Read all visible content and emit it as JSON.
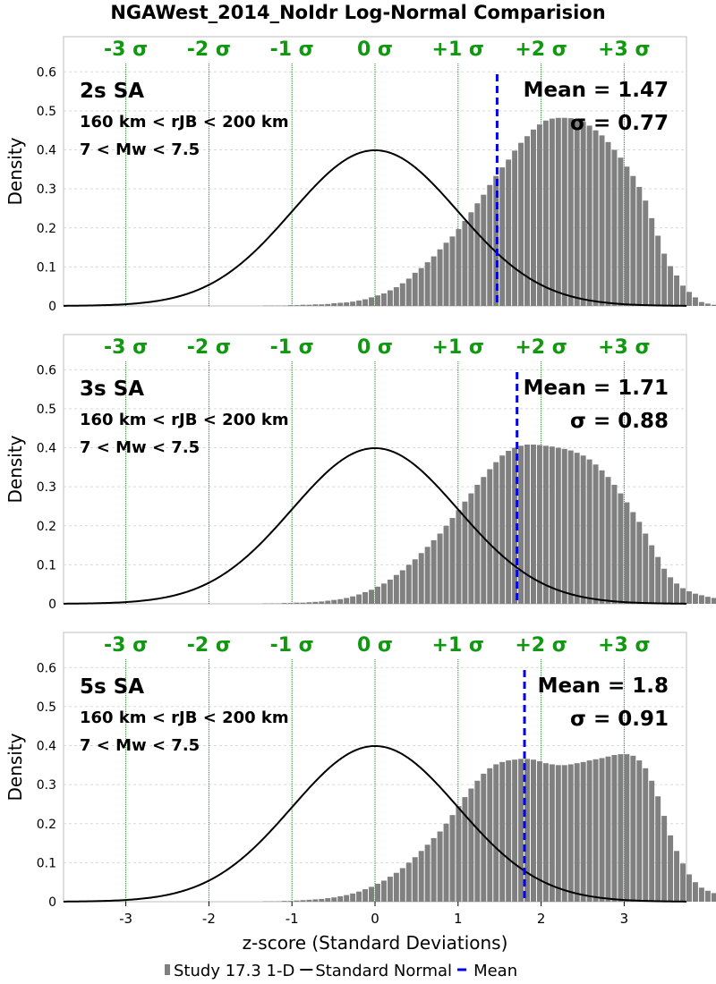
{
  "title": "NGAWest_2014_NoIdr Log-Normal Comparision",
  "chart_data": [
    {
      "type": "bar",
      "panel": "2s SA",
      "period_label": "2s SA",
      "distance_label": "160 km < rJB < 200 km",
      "magnitude_label": "7 < Mw < 7.5",
      "mean_label": "Mean = 1.47",
      "sigma_label": "σ = 0.77",
      "mean": 1.47,
      "sigma": 0.77,
      "ylabel": "Density",
      "xlim": [
        -3.75,
        3.75
      ],
      "ylim": [
        0,
        0.69
      ],
      "yticks": [
        "0",
        "0.1",
        "0.2",
        "0.3",
        "0.4",
        "0.5",
        "0.6"
      ],
      "sigma_labels": [
        "-3 σ",
        "-2 σ",
        "-1 σ",
        "0 σ",
        "+1 σ",
        "+2 σ",
        "+3 σ"
      ],
      "sigma_positions": [
        -3,
        -2,
        -1,
        0,
        1,
        2,
        3
      ],
      "bin_width": 0.075,
      "histogram": {
        "name": "Study 17.3 1-D",
        "x_start": -3.75,
        "values": [
          0,
          0,
          0,
          0,
          0,
          0,
          0,
          0,
          0,
          0,
          0,
          0,
          0,
          0,
          0,
          0,
          0,
          0,
          0,
          0,
          0,
          0,
          0,
          0,
          0,
          0,
          0,
          0,
          0,
          0,
          0,
          0,
          0.001,
          0.001,
          0.001,
          0.001,
          0.002,
          0.002,
          0.003,
          0.003,
          0.004,
          0.004,
          0.005,
          0.007,
          0.008,
          0.009,
          0.011,
          0.014,
          0.017,
          0.022,
          0.027,
          0.032,
          0.04,
          0.048,
          0.058,
          0.07,
          0.085,
          0.097,
          0.112,
          0.127,
          0.145,
          0.162,
          0.178,
          0.197,
          0.218,
          0.24,
          0.263,
          0.285,
          0.31,
          0.333,
          0.355,
          0.375,
          0.398,
          0.418,
          0.435,
          0.452,
          0.465,
          0.475,
          0.48,
          0.482,
          0.482,
          0.481,
          0.477,
          0.472,
          0.462,
          0.45,
          0.437,
          0.42,
          0.4,
          0.38,
          0.357,
          0.333,
          0.305,
          0.27,
          0.225,
          0.18,
          0.134,
          0.102,
          0.078,
          0.052,
          0.036,
          0.022,
          0.01,
          0.006,
          0.003,
          0.002,
          0.001,
          0,
          0,
          0
        ]
      },
      "normal_curve": {
        "name": "Standard Normal",
        "mean": 0,
        "sd": 1
      }
    },
    {
      "type": "bar",
      "panel": "3s SA",
      "period_label": "3s SA",
      "distance_label": "160 km < rJB < 200 km",
      "magnitude_label": "7 < Mw < 7.5",
      "mean_label": "Mean = 1.71",
      "sigma_label": "σ = 0.88",
      "mean": 1.71,
      "sigma": 0.88,
      "ylabel": "Density",
      "xlim": [
        -3.75,
        3.75
      ],
      "ylim": [
        0,
        0.69
      ],
      "yticks": [
        "0",
        "0.1",
        "0.2",
        "0.3",
        "0.4",
        "0.5",
        "0.6"
      ],
      "sigma_labels": [
        "-3 σ",
        "-2 σ",
        "-1 σ",
        "0 σ",
        "+1 σ",
        "+2 σ",
        "+3 σ"
      ],
      "sigma_positions": [
        -3,
        -2,
        -1,
        0,
        1,
        2,
        3
      ],
      "bin_width": 0.075,
      "histogram": {
        "name": "Study 17.3 1-D",
        "x_start": -3.75,
        "values": [
          0,
          0,
          0,
          0,
          0,
          0,
          0,
          0,
          0,
          0,
          0,
          0,
          0,
          0,
          0,
          0,
          0,
          0,
          0,
          0,
          0,
          0,
          0,
          0,
          0,
          0,
          0,
          0,
          0,
          0,
          0,
          0,
          0.001,
          0.001,
          0.001,
          0.002,
          0.002,
          0.003,
          0.003,
          0.004,
          0.005,
          0.006,
          0.008,
          0.01,
          0.012,
          0.015,
          0.019,
          0.024,
          0.03,
          0.036,
          0.044,
          0.052,
          0.062,
          0.074,
          0.086,
          0.1,
          0.114,
          0.13,
          0.146,
          0.163,
          0.18,
          0.2,
          0.22,
          0.24,
          0.262,
          0.283,
          0.305,
          0.325,
          0.345,
          0.363,
          0.38,
          0.392,
          0.4,
          0.405,
          0.408,
          0.408,
          0.407,
          0.405,
          0.403,
          0.4,
          0.397,
          0.393,
          0.387,
          0.38,
          0.37,
          0.357,
          0.342,
          0.325,
          0.305,
          0.283,
          0.26,
          0.235,
          0.21,
          0.18,
          0.15,
          0.12,
          0.09,
          0.068,
          0.052,
          0.04,
          0.032,
          0.026,
          0.022,
          0.018,
          0.015,
          0.018,
          0.02,
          0.022
        ]
      },
      "normal_curve": {
        "name": "Standard Normal",
        "mean": 0,
        "sd": 1
      }
    },
    {
      "type": "bar",
      "panel": "5s SA",
      "period_label": "5s SA",
      "distance_label": "160 km < rJB < 200 km",
      "magnitude_label": "7 < Mw < 7.5",
      "mean_label": "Mean = 1.8",
      "sigma_label": "σ = 0.91",
      "mean": 1.8,
      "sigma": 0.91,
      "ylabel": "Density",
      "xlabel": "z-score (Standard Deviations)",
      "xlim": [
        -3.75,
        3.75
      ],
      "ylim": [
        0,
        0.69
      ],
      "yticks": [
        "0",
        "0.1",
        "0.2",
        "0.3",
        "0.4",
        "0.5",
        "0.6"
      ],
      "xticks": [
        "-3",
        "-2",
        "-1",
        "0",
        "1",
        "2",
        "3"
      ],
      "sigma_labels": [
        "-3 σ",
        "-2 σ",
        "-1 σ",
        "0 σ",
        "+1 σ",
        "+2 σ",
        "+3 σ"
      ],
      "sigma_positions": [
        -3,
        -2,
        -1,
        0,
        1,
        2,
        3
      ],
      "bin_width": 0.075,
      "histogram": {
        "name": "Study 17.3 1-D",
        "x_start": -3.75,
        "values": [
          0,
          0,
          0,
          0,
          0,
          0,
          0,
          0,
          0,
          0,
          0,
          0,
          0,
          0,
          0,
          0,
          0,
          0,
          0,
          0,
          0,
          0,
          0,
          0,
          0,
          0,
          0,
          0,
          0,
          0,
          0,
          0,
          0.001,
          0.001,
          0.001,
          0.002,
          0.002,
          0.003,
          0.004,
          0.005,
          0.006,
          0.007,
          0.009,
          0.011,
          0.014,
          0.017,
          0.021,
          0.026,
          0.032,
          0.038,
          0.046,
          0.054,
          0.064,
          0.074,
          0.086,
          0.1,
          0.114,
          0.13,
          0.146,
          0.163,
          0.18,
          0.2,
          0.222,
          0.245,
          0.268,
          0.29,
          0.31,
          0.328,
          0.342,
          0.352,
          0.358,
          0.362,
          0.364,
          0.366,
          0.366,
          0.364,
          0.36,
          0.355,
          0.352,
          0.35,
          0.35,
          0.352,
          0.355,
          0.358,
          0.362,
          0.365,
          0.368,
          0.372,
          0.376,
          0.378,
          0.378,
          0.374,
          0.362,
          0.342,
          0.31,
          0.27,
          0.22,
          0.17,
          0.13,
          0.098,
          0.07,
          0.05,
          0.036,
          0.028,
          0.022,
          0.018,
          0.02,
          0.022
        ]
      },
      "normal_curve": {
        "name": "Standard Normal",
        "mean": 0,
        "sd": 1
      }
    }
  ],
  "legend": {
    "position": "bottom",
    "items": [
      {
        "label": "Study 17.3 1-D",
        "symbol": "bar-square",
        "color": "#808080"
      },
      {
        "label": "Standard Normal",
        "symbol": "line",
        "color": "#000000"
      },
      {
        "label": "Mean",
        "symbol": "dash",
        "color": "#0000ee"
      }
    ]
  },
  "colors": {
    "bars": "#808080",
    "normal_curve": "#000000",
    "mean_line": "#0000ee",
    "sigma_text": "#109810",
    "sigma_grid": "#1a8f1a"
  }
}
